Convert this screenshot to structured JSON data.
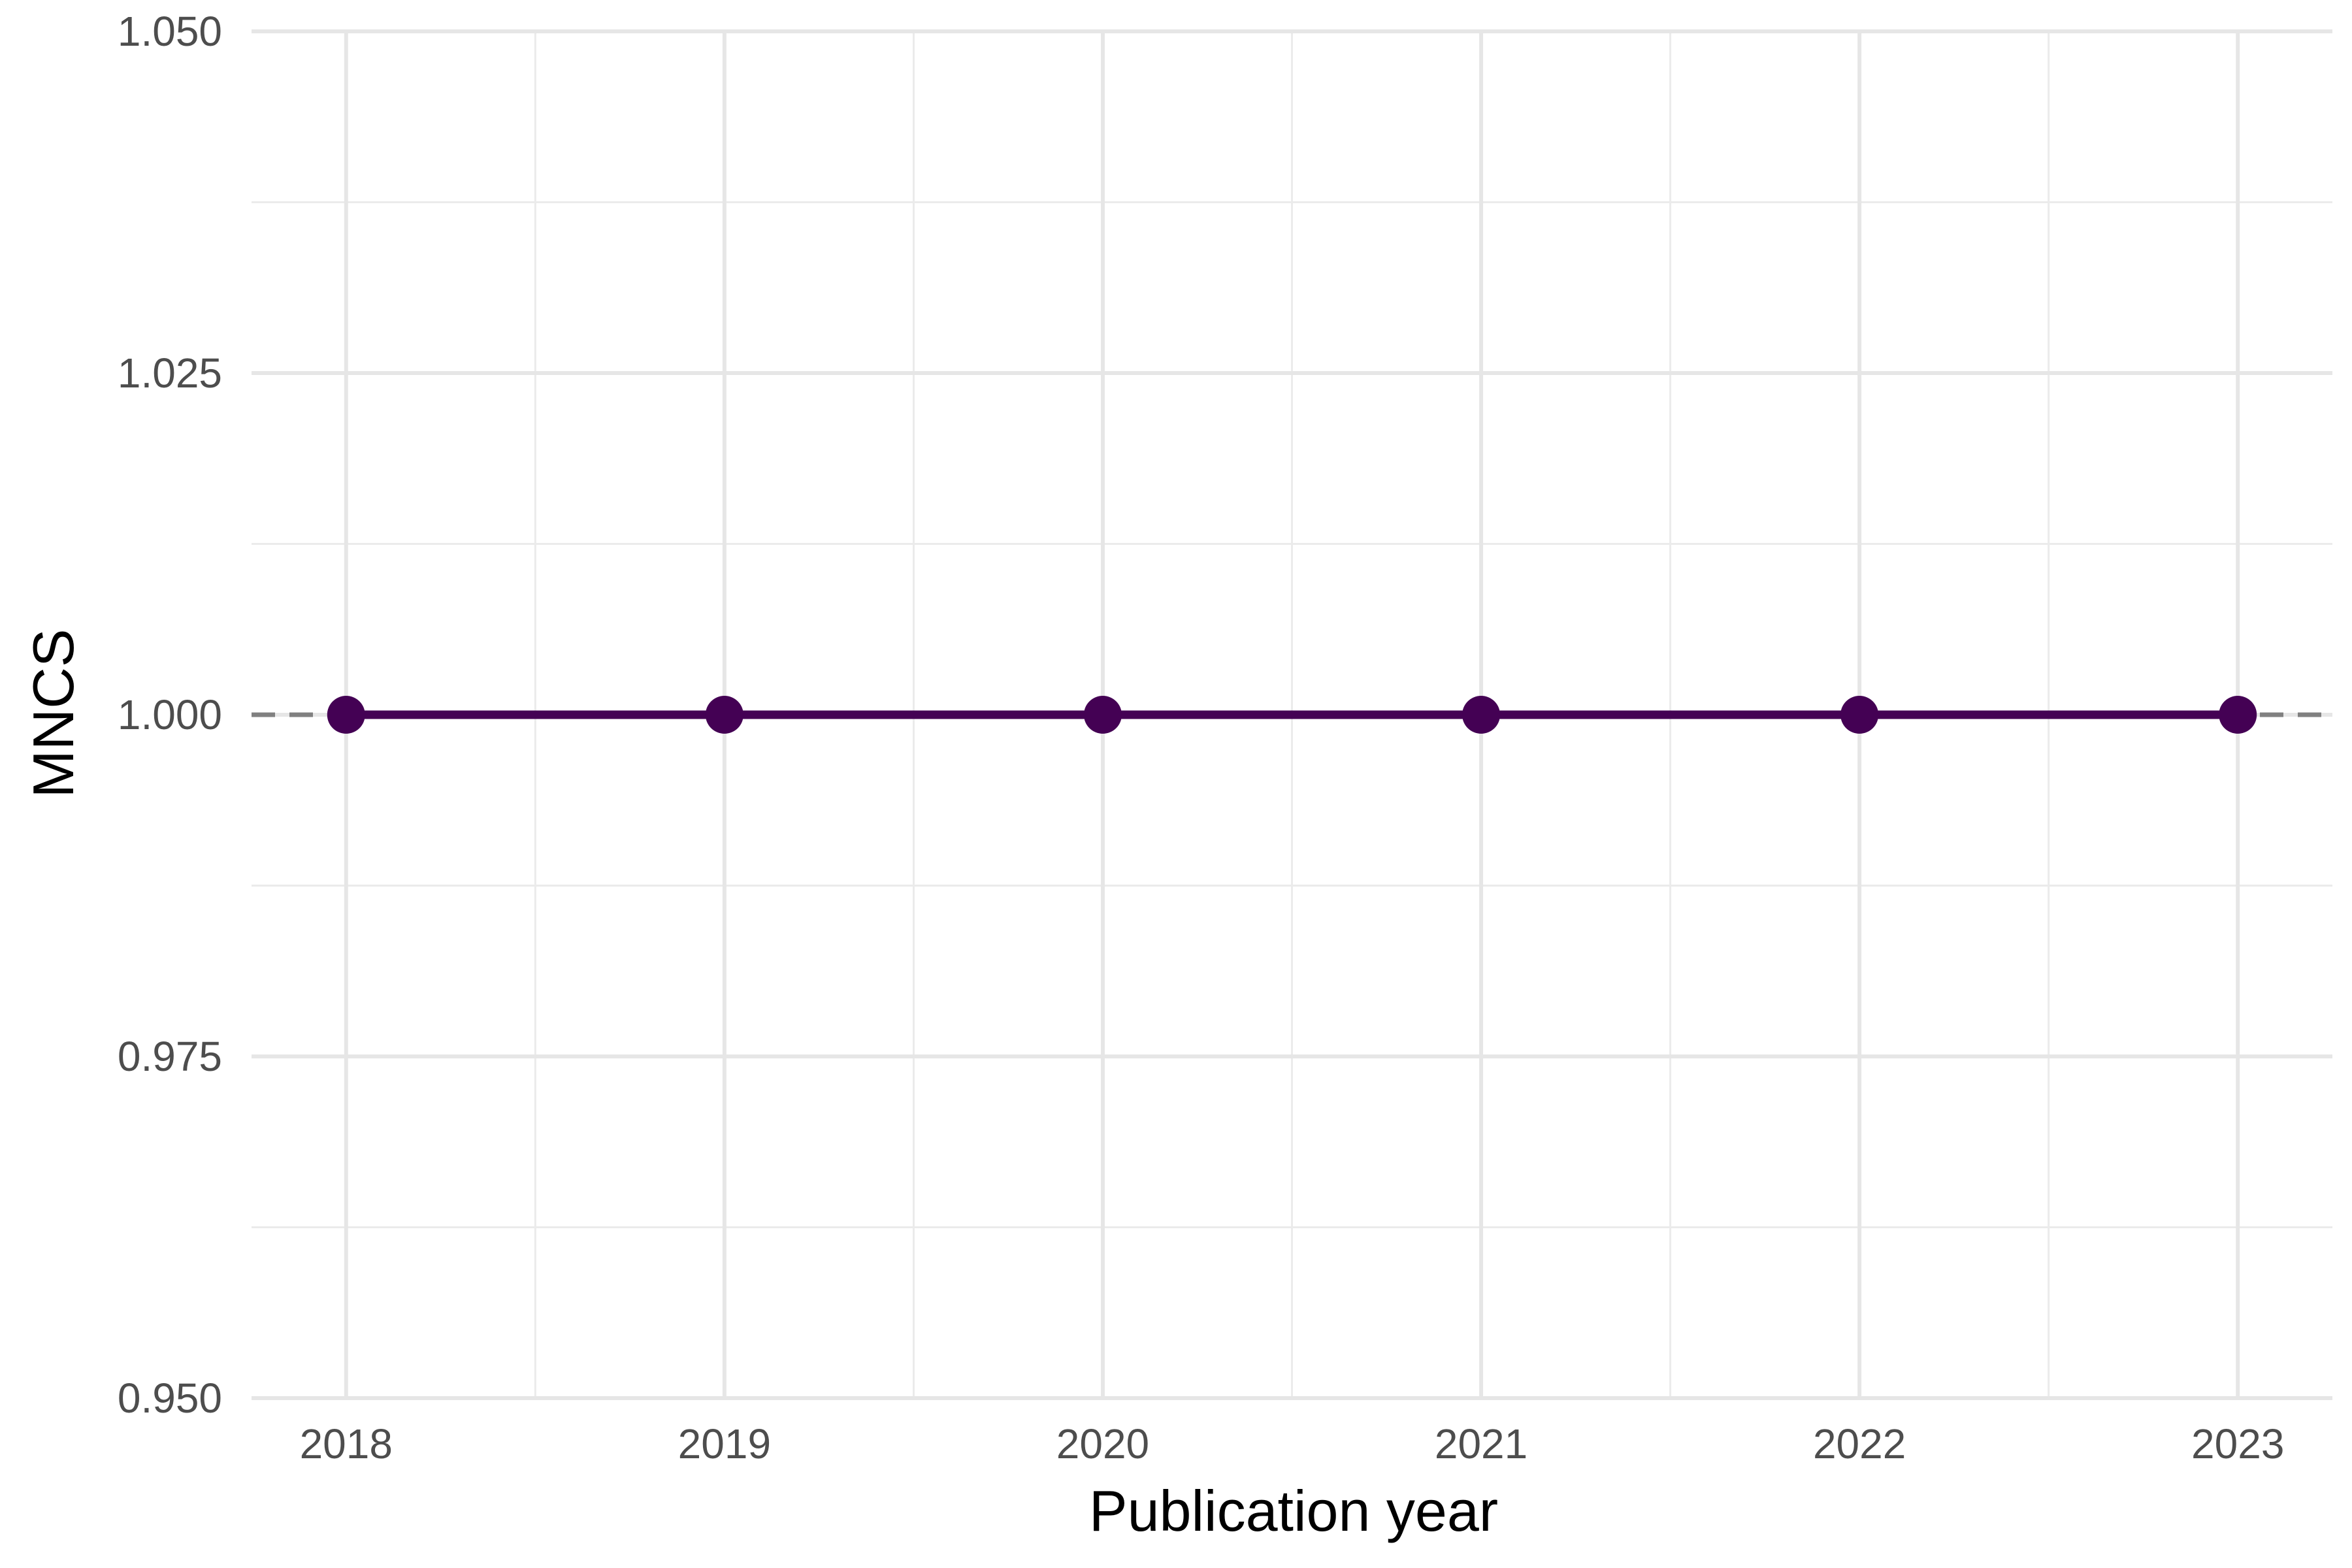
{
  "chart_data": {
    "type": "line",
    "xlabel": "Publication year",
    "ylabel": "MNCS",
    "x": [
      2018,
      2019,
      2020,
      2021,
      2022,
      2023
    ],
    "x_tick_labels": [
      "2018",
      "2019",
      "2020",
      "2021",
      "2022",
      "2023"
    ],
    "series": [
      {
        "values": [
          1.0,
          1.0,
          1.0,
          1.0,
          1.0,
          1.0
        ],
        "color": "#440154"
      }
    ],
    "reference_line": {
      "y": 1.0,
      "style": "dashed",
      "color": "#808080"
    },
    "xlim": [
      2017.75,
      2023.25
    ],
    "ylim": [
      0.95,
      1.05
    ],
    "y_ticks": [
      0.95,
      0.975,
      1.0,
      1.025,
      1.05
    ],
    "y_tick_labels": [
      "0.950",
      "0.975",
      "1.000",
      "1.025",
      "1.050"
    ],
    "grid": true,
    "legend": "none"
  }
}
